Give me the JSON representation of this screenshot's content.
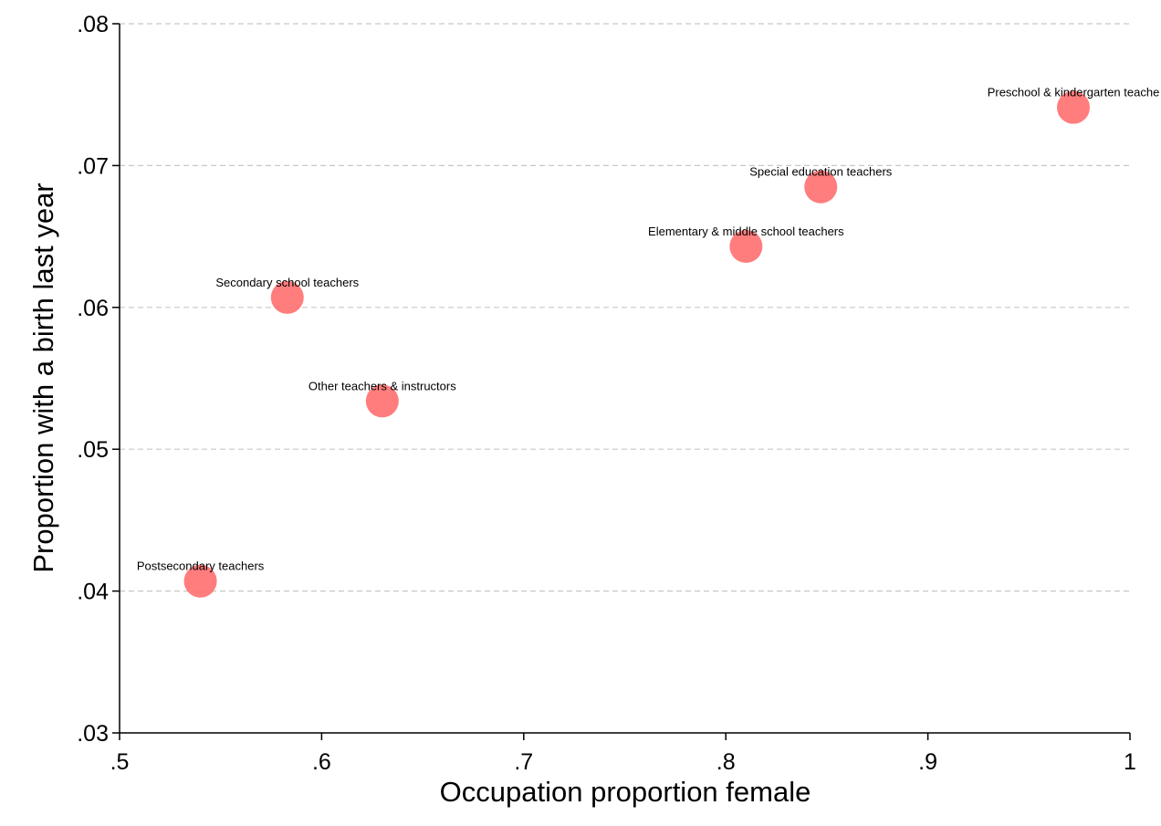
{
  "chart_data": {
    "type": "scatter",
    "title": "",
    "xlabel": "Occupation proportion female",
    "ylabel": "Proportion with a birth last year",
    "xlim": [
      0.5,
      1.0
    ],
    "ylim": [
      0.03,
      0.08
    ],
    "xticks": [
      0.5,
      0.6,
      0.7,
      0.8,
      0.9,
      1.0
    ],
    "xtick_labels": [
      ".5",
      ".6",
      ".7",
      ".8",
      ".9",
      "1"
    ],
    "yticks": [
      0.03,
      0.04,
      0.05,
      0.06,
      0.07,
      0.08
    ],
    "ytick_labels": [
      ".03",
      ".04",
      ".05",
      ".06",
      ".07",
      ".08"
    ],
    "grid": "horizontal dashed",
    "marker_color": "#ff6f6f",
    "points": [
      {
        "label": "Postsecondary teachers",
        "x": 0.54,
        "y": 0.0407
      },
      {
        "label": "Secondary school teachers",
        "x": 0.583,
        "y": 0.0607
      },
      {
        "label": "Other teachers & instructors",
        "x": 0.63,
        "y": 0.0534
      },
      {
        "label": "Elementary & middle school teachers",
        "x": 0.81,
        "y": 0.0643
      },
      {
        "label": "Special education teachers",
        "x": 0.847,
        "y": 0.0685
      },
      {
        "label": "Preschool & kindergarten teache",
        "x": 0.972,
        "y": 0.0741
      }
    ]
  }
}
